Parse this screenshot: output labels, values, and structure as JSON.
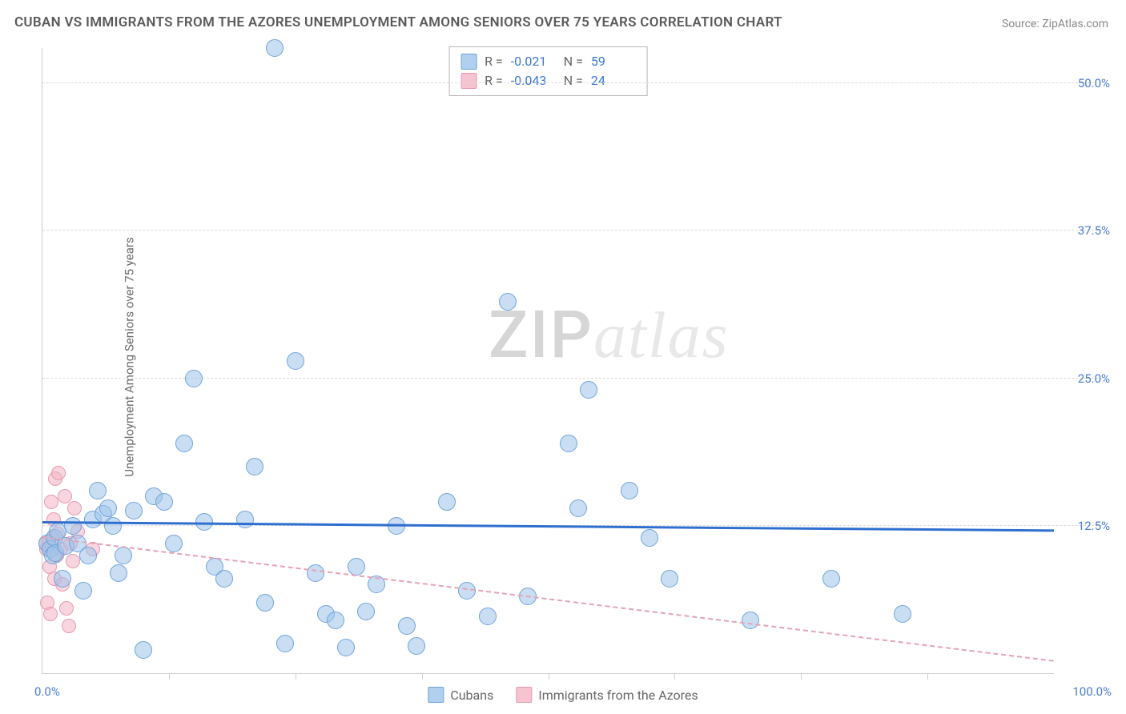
{
  "title": "CUBAN VS IMMIGRANTS FROM THE AZORES UNEMPLOYMENT AMONG SENIORS OVER 75 YEARS CORRELATION CHART",
  "source": "Source: ZipAtlas.com",
  "y_axis_label": "Unemployment Among Seniors over 75 years",
  "watermark_a": "ZIP",
  "watermark_b": "atlas",
  "chart": {
    "type": "scatter",
    "background_color": "#ffffff",
    "grid_color": "#dddddd",
    "axis_color": "#cfcfcf",
    "xlim": [
      0,
      100
    ],
    "ylim": [
      0,
      53
    ],
    "x_tick_step": 12.5,
    "x_min_label": "0.0%",
    "x_max_label": "100.0%",
    "y_ticks": [
      {
        "value": 12.5,
        "label": "12.5%"
      },
      {
        "value": 25.0,
        "label": "25.0%"
      },
      {
        "value": 37.5,
        "label": "37.5%"
      },
      {
        "value": 50.0,
        "label": "50.0%"
      }
    ],
    "label_color": "#4a7bd0",
    "label_fontsize": 15,
    "title_color": "#5a5a5a",
    "title_fontsize": 17,
    "marker_radius_main": 11,
    "marker_radius_small": 9
  },
  "series": {
    "cubans": {
      "name": "Cubans",
      "color_fill": "rgba(157,195,234,0.55)",
      "color_stroke": "#6fa3da",
      "R": "-0.021",
      "N": "59",
      "trend": {
        "x1": 0,
        "y1": 12.7,
        "x2": 100,
        "y2": 12.0,
        "color": "#2f6fd0",
        "width": 3,
        "dash": false
      },
      "points": [
        [
          0.5,
          11.0
        ],
        [
          0.8,
          10.5
        ],
        [
          1.0,
          10.0
        ],
        [
          1.2,
          11.5
        ],
        [
          1.5,
          12.0
        ],
        [
          1.3,
          10.2
        ],
        [
          2.0,
          8.0
        ],
        [
          2.3,
          10.8
        ],
        [
          3.0,
          12.5
        ],
        [
          3.5,
          11.0
        ],
        [
          4.0,
          7.0
        ],
        [
          4.5,
          10.0
        ],
        [
          5.0,
          13.0
        ],
        [
          5.5,
          15.5
        ],
        [
          6.0,
          13.5
        ],
        [
          6.5,
          14.0
        ],
        [
          7.0,
          12.5
        ],
        [
          7.5,
          8.5
        ],
        [
          8.0,
          10.0
        ],
        [
          9.0,
          13.8
        ],
        [
          10.0,
          2.0
        ],
        [
          11.0,
          15.0
        ],
        [
          12.0,
          14.5
        ],
        [
          13.0,
          11.0
        ],
        [
          14.0,
          19.5
        ],
        [
          15.0,
          25.0
        ],
        [
          16.0,
          12.8
        ],
        [
          17.0,
          9.0
        ],
        [
          18.0,
          8.0
        ],
        [
          20.0,
          13.0
        ],
        [
          21.0,
          17.5
        ],
        [
          22.0,
          6.0
        ],
        [
          23.0,
          53.0
        ],
        [
          24.0,
          2.5
        ],
        [
          25.0,
          26.5
        ],
        [
          27.0,
          8.5
        ],
        [
          28.0,
          5.0
        ],
        [
          29.0,
          4.5
        ],
        [
          30.0,
          2.2
        ],
        [
          31.0,
          9.0
        ],
        [
          32.0,
          5.2
        ],
        [
          33.0,
          7.5
        ],
        [
          35.0,
          12.5
        ],
        [
          36.0,
          4.0
        ],
        [
          37.0,
          2.3
        ],
        [
          40.0,
          14.5
        ],
        [
          42.0,
          7.0
        ],
        [
          44.0,
          4.8
        ],
        [
          46.0,
          31.5
        ],
        [
          48.0,
          6.5
        ],
        [
          52.0,
          19.5
        ],
        [
          53.0,
          14.0
        ],
        [
          54.0,
          24.0
        ],
        [
          58.0,
          15.5
        ],
        [
          60.0,
          11.5
        ],
        [
          62.0,
          8.0
        ],
        [
          70.0,
          4.5
        ],
        [
          78.0,
          8.0
        ],
        [
          85.0,
          5.0
        ]
      ]
    },
    "azores": {
      "name": "Immigrants from the Azores",
      "color_fill": "rgba(244,180,196,0.55)",
      "color_stroke": "#e59ab0",
      "R": "-0.043",
      "N": "24",
      "trend": {
        "x1": 0,
        "y1": 11.5,
        "x2": 100,
        "y2": 1.0,
        "color": "#e6a2b5",
        "width": 2,
        "dash": true
      },
      "points": [
        [
          0.3,
          11.0
        ],
        [
          0.4,
          10.5
        ],
        [
          0.5,
          6.0
        ],
        [
          0.6,
          11.2
        ],
        [
          0.7,
          9.0
        ],
        [
          0.8,
          5.0
        ],
        [
          0.9,
          14.5
        ],
        [
          1.0,
          11.5
        ],
        [
          1.1,
          13.0
        ],
        [
          1.2,
          8.0
        ],
        [
          1.3,
          16.5
        ],
        [
          1.4,
          10.0
        ],
        [
          1.5,
          11.8
        ],
        [
          1.6,
          17.0
        ],
        [
          1.8,
          10.5
        ],
        [
          2.0,
          7.5
        ],
        [
          2.2,
          15.0
        ],
        [
          2.4,
          5.5
        ],
        [
          2.6,
          4.0
        ],
        [
          2.8,
          11.0
        ],
        [
          3.0,
          9.5
        ],
        [
          3.2,
          14.0
        ],
        [
          3.5,
          12.0
        ],
        [
          5.0,
          10.5
        ]
      ]
    }
  },
  "stats_labels": {
    "R": "R =",
    "N": "N ="
  },
  "legend": {
    "series1": "Cubans",
    "series2": "Immigrants from the Azores"
  }
}
